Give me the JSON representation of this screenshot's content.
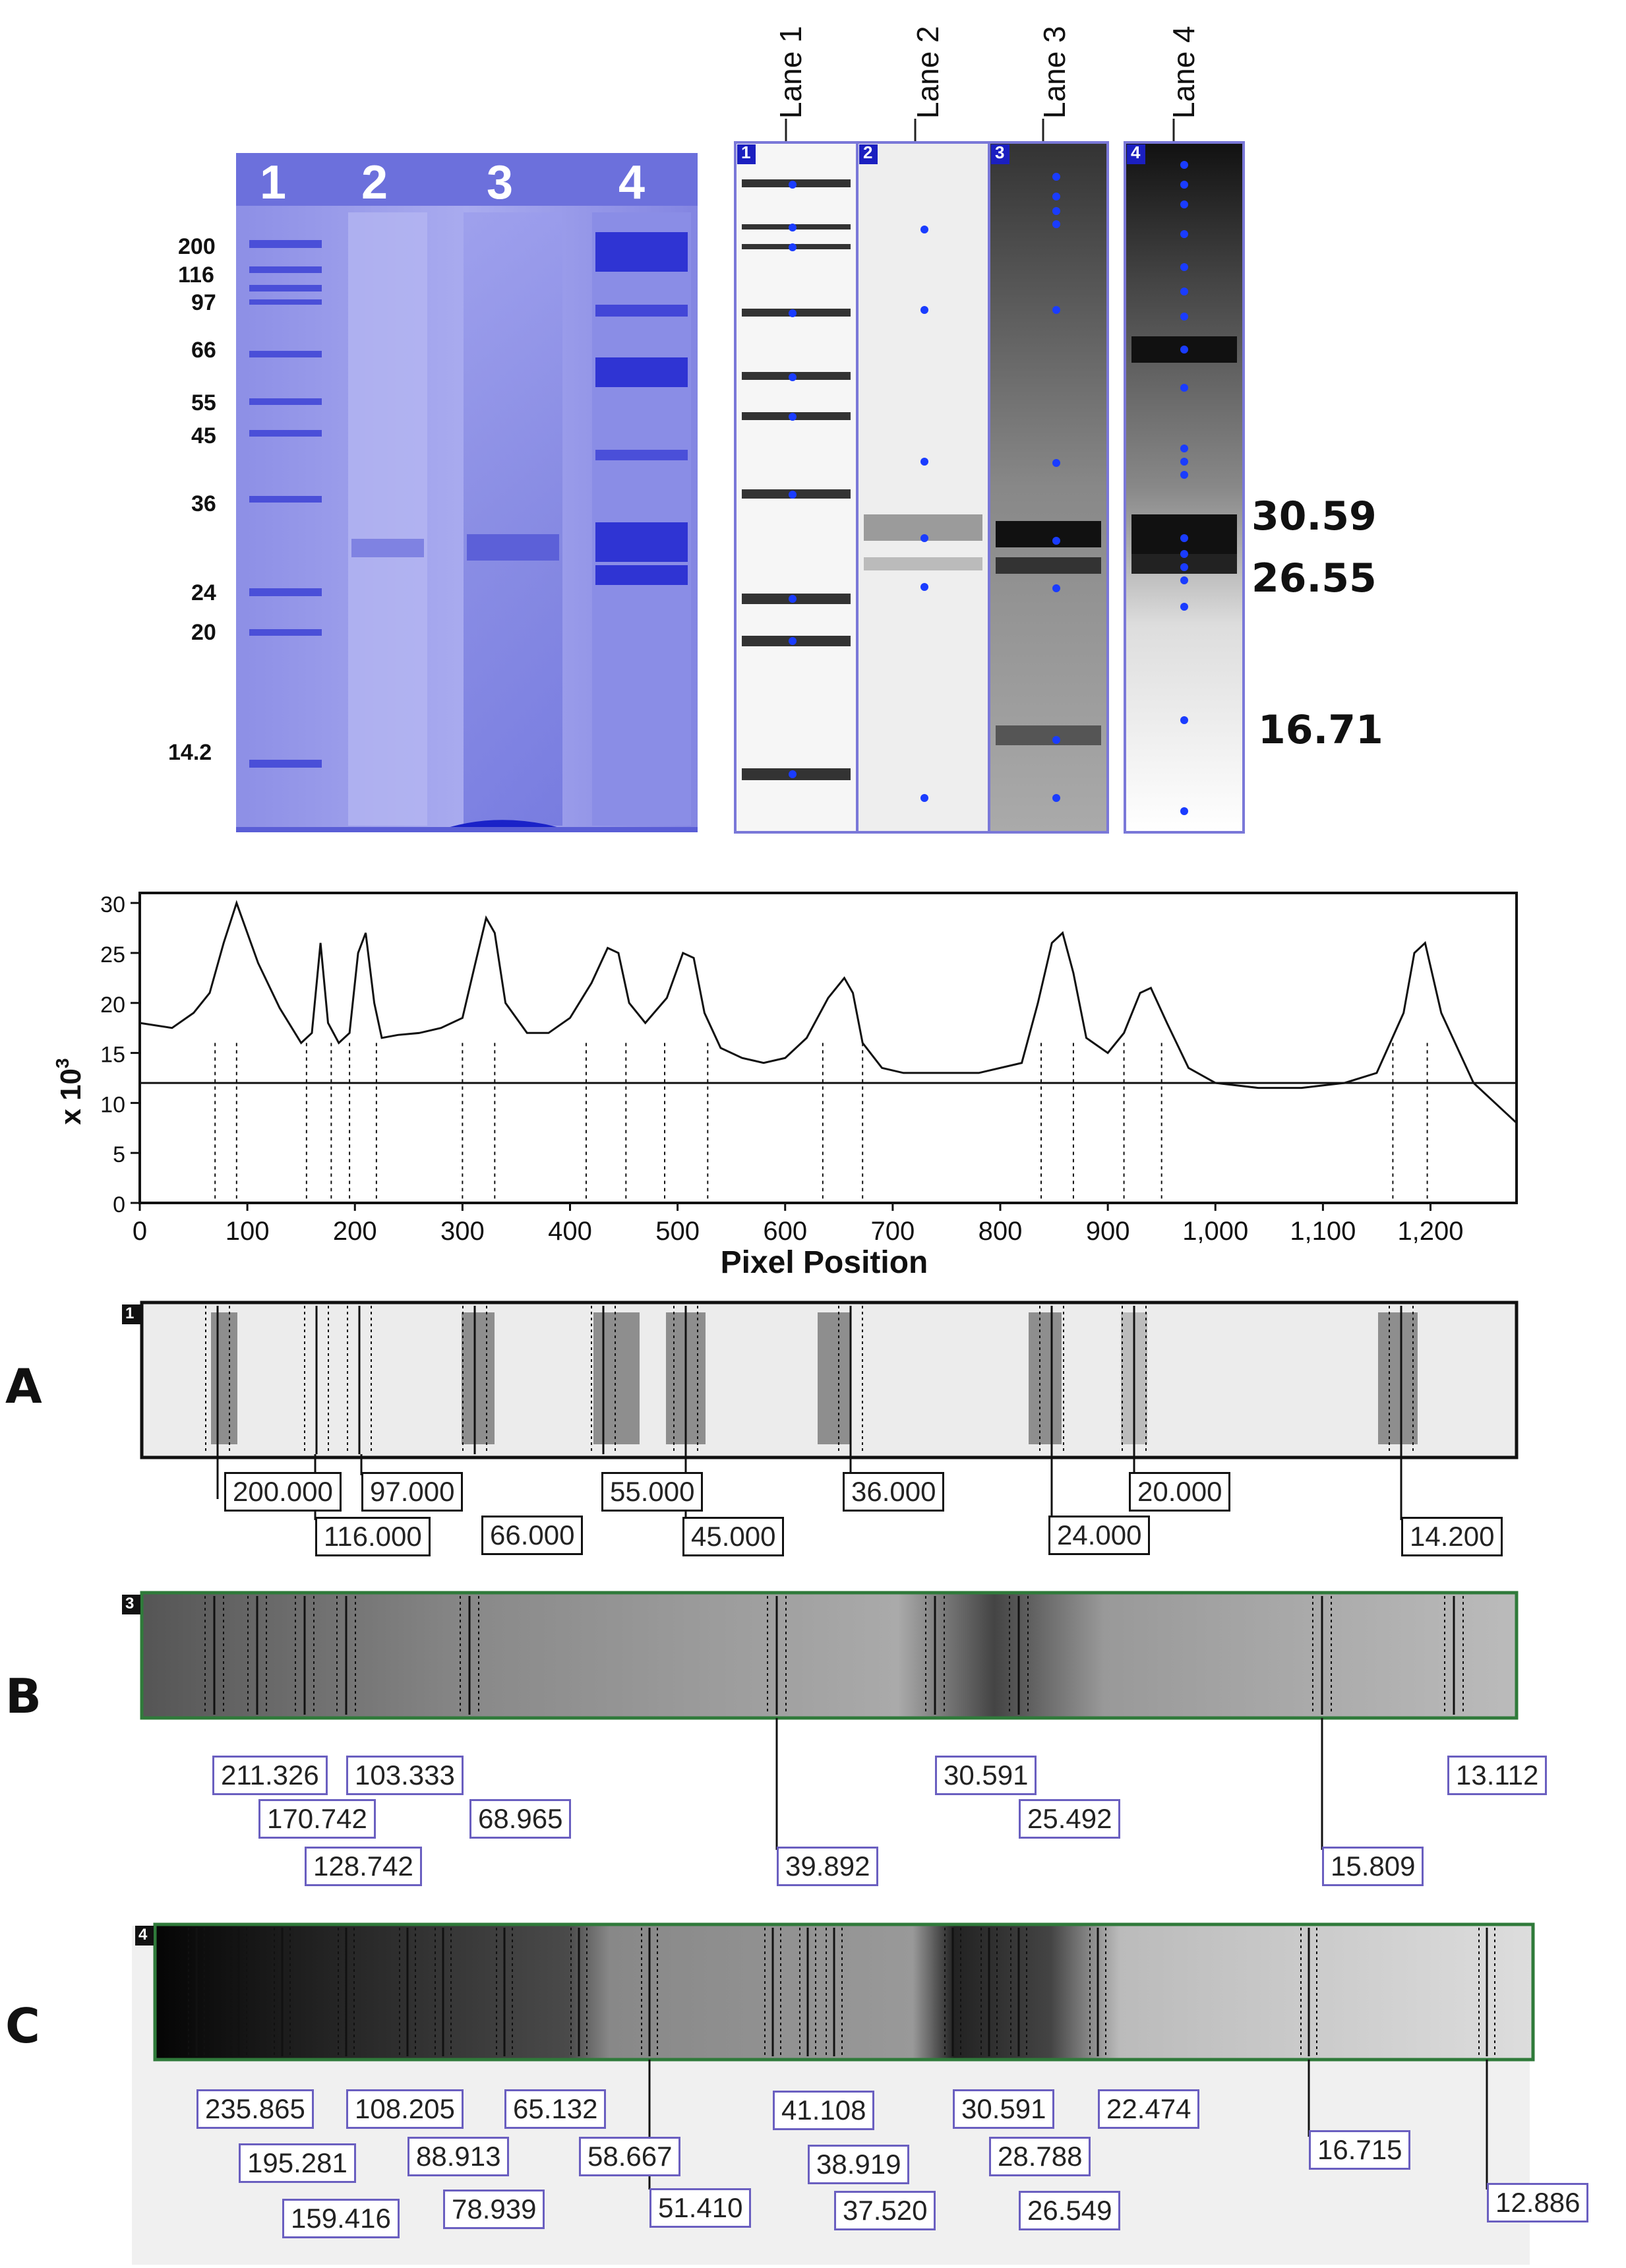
{
  "gel": {
    "lane_numbers": [
      "1",
      "2",
      "3",
      "4"
    ],
    "marker_labels": [
      "200",
      "116",
      "97",
      "66",
      "55",
      "45",
      "36",
      "24",
      "20",
      "14.2"
    ]
  },
  "lanes": {
    "headers": [
      "Lane 1",
      "Lane 2",
      "Lane 3",
      "Lane 4"
    ],
    "numbers": [
      "1",
      "2",
      "3",
      "4"
    ]
  },
  "key_bands": [
    "30.59",
    "26.55",
    "16.71"
  ],
  "chart_data": {
    "type": "line",
    "ylabel": "x 10",
    "ylabel_exponent": "3",
    "xlabel": "Pixel Position",
    "y_ticks": [
      "0",
      "5",
      "10",
      "15",
      "20",
      "25",
      "30"
    ],
    "x_ticks": [
      "0",
      "100",
      "200",
      "300",
      "400",
      "500",
      "600",
      "700",
      "800",
      "900",
      "1,000",
      "1,100",
      "1,200"
    ],
    "xlim": [
      0,
      1280
    ],
    "ylim": [
      0,
      31
    ],
    "baseline": 12,
    "x": [
      0,
      30,
      50,
      65,
      78,
      90,
      110,
      130,
      150,
      160,
      168,
      175,
      185,
      195,
      203,
      210,
      218,
      225,
      240,
      260,
      280,
      300,
      312,
      322,
      330,
      340,
      360,
      380,
      400,
      420,
      435,
      445,
      455,
      470,
      490,
      505,
      515,
      525,
      540,
      560,
      580,
      600,
      620,
      640,
      655,
      663,
      672,
      690,
      710,
      740,
      780,
      820,
      835,
      848,
      858,
      868,
      880,
      900,
      915,
      930,
      940,
      955,
      975,
      1000,
      1040,
      1080,
      1120,
      1150,
      1175,
      1185,
      1195,
      1210,
      1240,
      1280
    ],
    "y": [
      18,
      17.5,
      19,
      21,
      26,
      30,
      24,
      19.5,
      16,
      17,
      26,
      18,
      16,
      17,
      25,
      27,
      20,
      16.5,
      16.8,
      17,
      17.5,
      18.5,
      24,
      28.5,
      27,
      20,
      17,
      17,
      18.5,
      22,
      25.5,
      25,
      20,
      18,
      20.5,
      25,
      24.5,
      19,
      15.5,
      14.5,
      14,
      14.5,
      16.5,
      20.5,
      22.5,
      21,
      16,
      13.5,
      13,
      13,
      13,
      14,
      20,
      26,
      27,
      23,
      16.5,
      15,
      17,
      21,
      21.5,
      18,
      13.5,
      12,
      11.5,
      11.5,
      12,
      13,
      19,
      25,
      26,
      19,
      12,
      8
    ],
    "peak_markers": [
      70,
      90,
      155,
      178,
      195,
      220,
      300,
      330,
      415,
      452,
      488,
      528,
      635,
      672,
      838,
      868,
      915,
      950,
      1165,
      1197
    ]
  },
  "rows": {
    "letters": [
      "A",
      "B",
      "C"
    ],
    "A": {
      "strip_number": "1",
      "labels": [
        "200.000",
        "97.000",
        "116.000",
        "66.000",
        "55.000",
        "45.000",
        "36.000",
        "24.000",
        "20.000",
        "14.200"
      ]
    },
    "B": {
      "strip_number": "3",
      "labels": [
        "211.326",
        "103.333",
        "170.742",
        "128.742",
        "68.965",
        "39.892",
        "30.591",
        "25.492",
        "15.809",
        "13.112"
      ]
    },
    "C": {
      "strip_number": "4",
      "labels": [
        "235.865",
        "108.205",
        "65.132",
        "195.281",
        "88.913",
        "58.667",
        "159.416",
        "78.939",
        "51.410",
        "41.108",
        "38.919",
        "37.520",
        "30.591",
        "28.788",
        "26.549",
        "22.474",
        "16.715",
        "12.886"
      ]
    }
  },
  "colors": {
    "gel_bg": "#8f8fe6",
    "gel_band": "#3a3fd6",
    "lane_box": "#7a78d8",
    "lane_marker": "#1a3cff",
    "strip_a_border": "#111111",
    "strip_bc_border": "#2f7a3a",
    "label_border_bc": "#6a5fc0"
  }
}
